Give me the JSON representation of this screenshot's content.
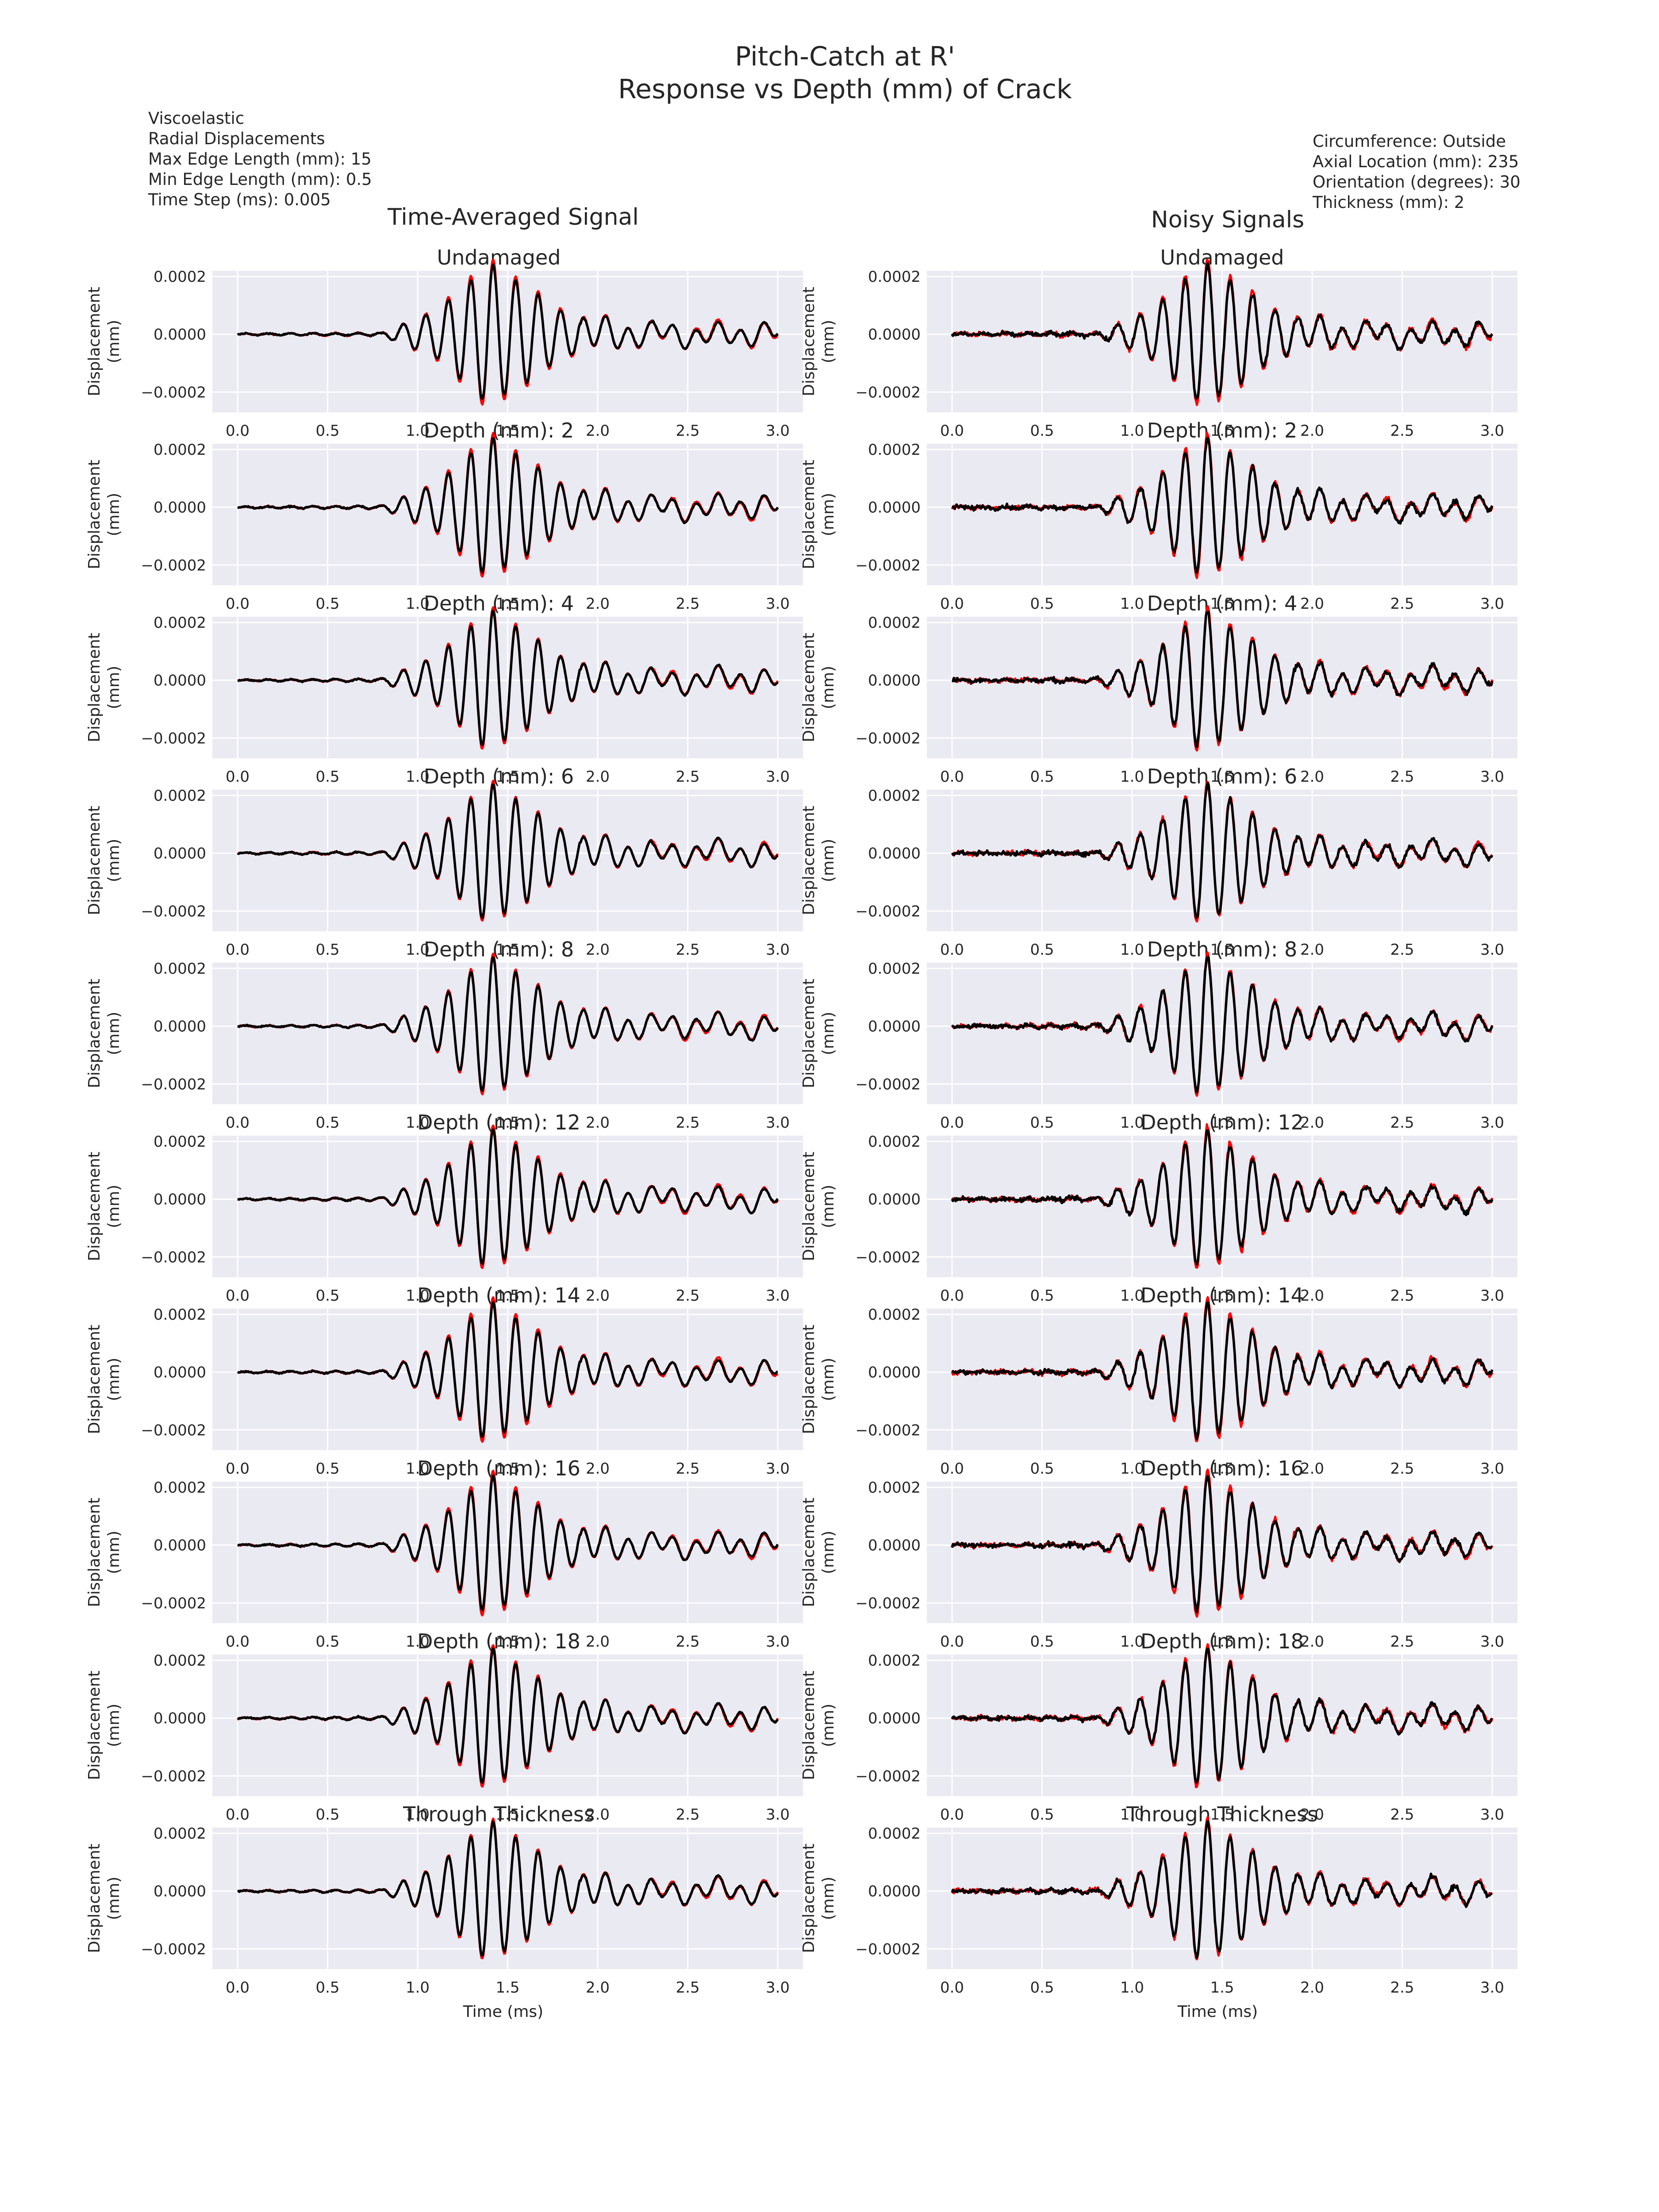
{
  "figure": {
    "title_line1": "Pitch-Catch at R'",
    "title_line2": "Response vs Depth (mm) of Crack"
  },
  "info_left": [
    "Viscoelastic",
    "Radial Displacements",
    "Max Edge Length (mm): 15",
    "Min Edge Length (mm): 0.5",
    "Time Step (ms): 0.005"
  ],
  "info_right": [
    "Circumference: Outside",
    "Axial Location (mm): 235",
    "Orientation (degrees): 30",
    "Thickness (mm): 2"
  ],
  "columns": [
    "Time-Averaged Signal",
    "Noisy Signals"
  ],
  "colors": {
    "background": "#eaeaf2",
    "reference": "#ff0000",
    "measured": "#000000",
    "grid": "#ffffff"
  },
  "chart_data": {
    "type": "line",
    "xlabel": "Time (ms)",
    "ylabel_line1": "Displacement",
    "ylabel_line2": "(mm)",
    "xlim": [
      -0.14,
      3.14
    ],
    "ylim": [
      -0.00027,
      0.00022
    ],
    "xticks": [
      0.0,
      0.5,
      1.0,
      1.5,
      2.0,
      2.5,
      3.0
    ],
    "xtick_labels": [
      "0.0",
      "0.5",
      "1.0",
      "1.5",
      "2.0",
      "2.5",
      "3.0"
    ],
    "yticks": [
      0.0002,
      0.0,
      -0.0002
    ],
    "ytick_labels": [
      "0.0002",
      "0.0000",
      "−0.0002"
    ],
    "panel_titles": [
      "Undamaged",
      "Depth (mm): 2",
      "Depth (mm): 4",
      "Depth (mm): 6",
      "Depth (mm): 8",
      "Depth (mm): 12",
      "Depth (mm): 14",
      "Depth (mm): 16",
      "Depth (mm): 18",
      "Through Thickness"
    ],
    "series_colors": [
      "#ff0000",
      "#000000"
    ],
    "signal_envelope": {
      "time_ms": [
        0.0,
        0.8,
        1.1,
        1.3,
        1.4,
        1.5,
        1.6,
        1.8,
        2.0,
        2.3,
        3.0
      ],
      "peak_mm": [
        2e-06,
        5e-06,
        8e-05,
        0.00019,
        0.00025,
        0.0002,
        0.00017,
        8e-05,
        5e-05,
        3e-05,
        3e-05
      ]
    }
  }
}
